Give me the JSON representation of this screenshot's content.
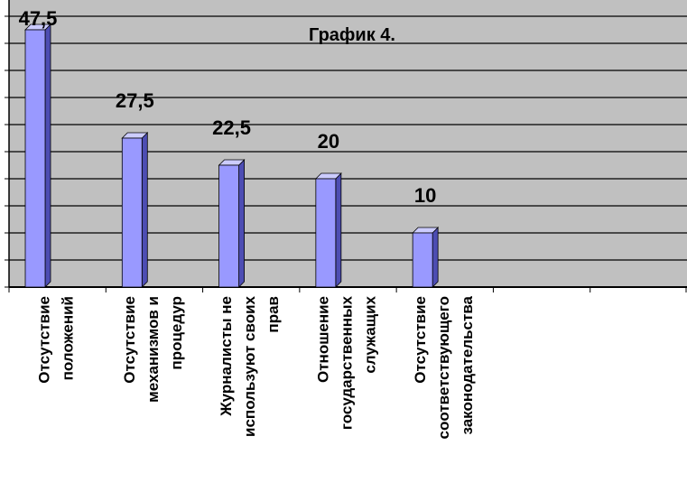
{
  "chart_data": {
    "type": "bar",
    "title": "График 4.",
    "categories": [
      "Отсутствие\nположений",
      "Отсутствие\nмеханизмов и\nпроцедур",
      "Журналисты не\nиспользуют своих\nправ",
      "Отношение\nгосударственных\nслужащих",
      "Отсутствие\nсоответствующего\nзаконодательства",
      null,
      null
    ],
    "values": [
      47.5,
      27.5,
      22.5,
      20,
      10,
      null,
      null
    ],
    "value_labels": [
      "47,5",
      "27,5",
      "22,5",
      "20",
      "10",
      null,
      null
    ],
    "color": "#9999ff",
    "ylim": [
      0,
      52
    ],
    "yticks": [
      0,
      5,
      10,
      15,
      20,
      25,
      30,
      35,
      40,
      45,
      50
    ],
    "grid": true
  }
}
